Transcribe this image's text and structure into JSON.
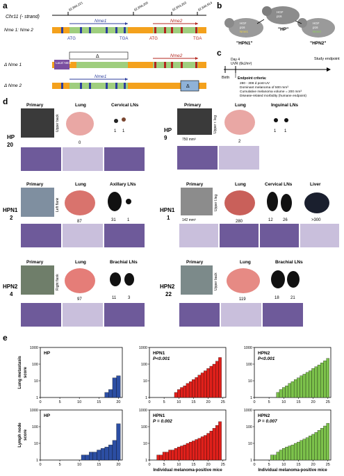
{
  "panel_letters": {
    "a": "a",
    "b": "b",
    "c": "c",
    "d": "d",
    "e": "e"
  },
  "panel_a": {
    "chr_label": "Chr11 (- strand)",
    "coords": [
      "92,860,221",
      "92,858,205",
      "92,853,263",
      "92,840,914"
    ],
    "rows": [
      {
        "label": "Nme 1: Nme 2",
        "gene1": "Nme1",
        "gene2": "Nme2",
        "atg1": "ATG",
        "tga1": "TGA",
        "atg2": "ATG",
        "tga2": "TGA"
      },
      {
        "label": "Δ Nme 1",
        "lacz": "LacZ/ NEO",
        "gene2": "Nme2",
        "delta": "Δ"
      },
      {
        "label": "Δ Nme 2",
        "gene1": "Nme1",
        "delta": "Δ"
      }
    ]
  },
  "panel_b": {
    "labels": [
      "\"HPN1\"",
      "\"HP\"",
      "\"HPN2\""
    ],
    "mouse_text": [
      "HGF",
      "p16",
      "Nme1",
      "Nme2"
    ]
  },
  "panel_c": {
    "birth": "Birth",
    "day": "Day 4",
    "uvr": "UVR (6kJ/m²)",
    "endpoint": "Study endpoint",
    "criteria_title": "Endpoint criteria:",
    "criteria": [
      "280 - 308 d post-UV",
      "Dominant melanoma of 500 mm³",
      "Cumulative melanoma volume = 200 mm³",
      "Disease-related morbidity (humane endpoint)"
    ]
  },
  "panel_d": [
    {
      "group": "HP",
      "mouse": "20",
      "site": "Upper back",
      "cols": [
        "Primary",
        "Lung",
        "Cervical LNs"
      ],
      "lung_count": "0",
      "ln_counts": [
        "1",
        "1"
      ],
      "vol": ""
    },
    {
      "group": "HP",
      "mouse": "9",
      "site": "Upper r. leg",
      "cols": [
        "Primary",
        "Lung",
        "Inguinal LNs"
      ],
      "lung_count": "2",
      "ln_counts": [
        "1",
        "1"
      ],
      "vol": "750 mm³"
    },
    {
      "group": "HPN1",
      "mouse": "2",
      "site": "Left flank",
      "cols": [
        "Primary",
        "Lung",
        "Axillary LNs"
      ],
      "lung_count": "87",
      "ln_counts": [
        "31",
        "1"
      ],
      "vol": ""
    },
    {
      "group": "HPN1",
      "mouse": "1",
      "site": "Upper l.leg",
      "cols": [
        "Primary",
        "Lung",
        "Cervical LNs",
        "Liver"
      ],
      "lung_count": "280",
      "ln_counts": [
        "12",
        "26"
      ],
      "liver": ">300",
      "vol": "142 mm³"
    },
    {
      "group": "HPN2",
      "mouse": "4",
      "site": "Right flank",
      "cols": [
        "Primary",
        "Lung",
        "Brachial LNs"
      ],
      "lung_count": "97",
      "ln_counts": [
        "11",
        "3"
      ],
      "vol": ""
    },
    {
      "group": "HPN2",
      "mouse": "22",
      "site": "Upper back",
      "cols": [
        "Primary",
        "Lung",
        "Brachial LNs"
      ],
      "lung_count": "119",
      "ln_counts": [
        "18",
        "21"
      ],
      "vol": ""
    }
  ],
  "chart_data": [
    {
      "type": "bar",
      "row": "Lung metastasis score",
      "title": "HP",
      "pvalue": "",
      "color": "#2c4ea3",
      "x": [
        17,
        18,
        19,
        20
      ],
      "values": [
        2,
        3,
        15,
        20
      ],
      "ylabel": "Lung metastasis score",
      "xlabel": "",
      "ylim": [
        1,
        1000
      ],
      "xlim": [
        0,
        21
      ],
      "log_y": true,
      "xticks": [
        "0",
        "5",
        "10",
        "15",
        "20"
      ],
      "yticks": [
        "1",
        "10",
        "100",
        "1000"
      ]
    },
    {
      "type": "bar",
      "row": "Lung metastasis score",
      "title": "HPN1",
      "pvalue": "P<0.001",
      "color": "#e0201b",
      "x": [
        9,
        10,
        11,
        12,
        13,
        14,
        15,
        16,
        17,
        18,
        19,
        20,
        21,
        22,
        23,
        24
      ],
      "values": [
        2,
        3,
        4,
        5,
        7,
        9,
        12,
        16,
        22,
        30,
        40,
        55,
        75,
        100,
        150,
        250
      ],
      "ylabel": "",
      "xlabel": "",
      "ylim": [
        1,
        1000
      ],
      "xlim": [
        0,
        26
      ],
      "log_y": true,
      "xticks": [
        "0",
        "5",
        "10",
        "15",
        "20",
        "25"
      ],
      "yticks": [
        "1",
        "10",
        "100",
        "1000"
      ]
    },
    {
      "type": "bar",
      "row": "Lung metastasis score",
      "title": "HPN2",
      "pvalue": "P<0.001",
      "color": "#7cc24b",
      "x": [
        8,
        9,
        10,
        11,
        12,
        13,
        14,
        15,
        16,
        17,
        18,
        19,
        20,
        21,
        22,
        23,
        24,
        25
      ],
      "values": [
        2,
        3,
        4,
        5,
        7,
        9,
        12,
        15,
        20,
        25,
        32,
        40,
        55,
        70,
        90,
        120,
        160,
        220
      ],
      "ylabel": "",
      "xlabel": "",
      "ylim": [
        1,
        1000
      ],
      "xlim": [
        0,
        26
      ],
      "log_y": true,
      "xticks": [
        "0",
        "5",
        "10",
        "15",
        "20",
        "25"
      ],
      "yticks": [
        "1",
        "10",
        "100",
        "1000"
      ]
    },
    {
      "type": "bar",
      "row": "Lymph node score",
      "title": "HP",
      "pvalue": "",
      "color": "#2c4ea3",
      "x": [
        11,
        12,
        13,
        14,
        15,
        16,
        17,
        18,
        19,
        20
      ],
      "values": [
        2,
        2,
        3,
        3,
        4,
        5,
        6,
        8,
        15,
        150
      ],
      "ylabel": "Lymph node score",
      "xlabel": "",
      "ylim": [
        1,
        1000
      ],
      "xlim": [
        0,
        21
      ],
      "log_y": true,
      "xticks": [
        "0",
        "5",
        "10",
        "15",
        "20"
      ],
      "yticks": [
        "1",
        "10",
        "100",
        "1000"
      ]
    },
    {
      "type": "bar",
      "row": "Lymph node score",
      "title": "HPN1",
      "pvalue": "P = 0.002",
      "color": "#e0201b",
      "x": [
        3,
        4,
        5,
        6,
        7,
        8,
        9,
        10,
        11,
        12,
        13,
        14,
        15,
        16,
        17,
        18,
        19,
        20,
        21,
        22,
        23,
        24
      ],
      "values": [
        2,
        2,
        3,
        3,
        4,
        4,
        5,
        6,
        7,
        8,
        10,
        12,
        14,
        17,
        20,
        25,
        30,
        40,
        55,
        80,
        120,
        200
      ],
      "ylabel": "",
      "xlabel": "Individual melanoma-positive mice",
      "ylim": [
        1,
        1000
      ],
      "xlim": [
        0,
        26
      ],
      "log_y": true,
      "xticks": [
        "0",
        "5",
        "10",
        "15",
        "20",
        "25"
      ],
      "yticks": [
        "1",
        "10",
        "100",
        "1000"
      ]
    },
    {
      "type": "bar",
      "row": "Lymph node score",
      "title": "HPN2",
      "pvalue": "P = 0.007",
      "color": "#7cc24b",
      "x": [
        6,
        7,
        8,
        9,
        10,
        11,
        12,
        13,
        14,
        15,
        16,
        17,
        18,
        19,
        20,
        21,
        22,
        23,
        24,
        25
      ],
      "values": [
        2,
        2,
        3,
        4,
        5,
        6,
        7,
        8,
        10,
        12,
        15,
        18,
        22,
        28,
        35,
        45,
        60,
        80,
        110,
        160
      ],
      "ylabel": "",
      "xlabel": "Individual melanoma-positive mice",
      "ylim": [
        1,
        1000
      ],
      "xlim": [
        0,
        26
      ],
      "log_y": true,
      "xticks": [
        "0",
        "5",
        "10",
        "15",
        "20",
        "25"
      ],
      "yticks": [
        "1",
        "10",
        "100",
        "1000"
      ]
    }
  ]
}
